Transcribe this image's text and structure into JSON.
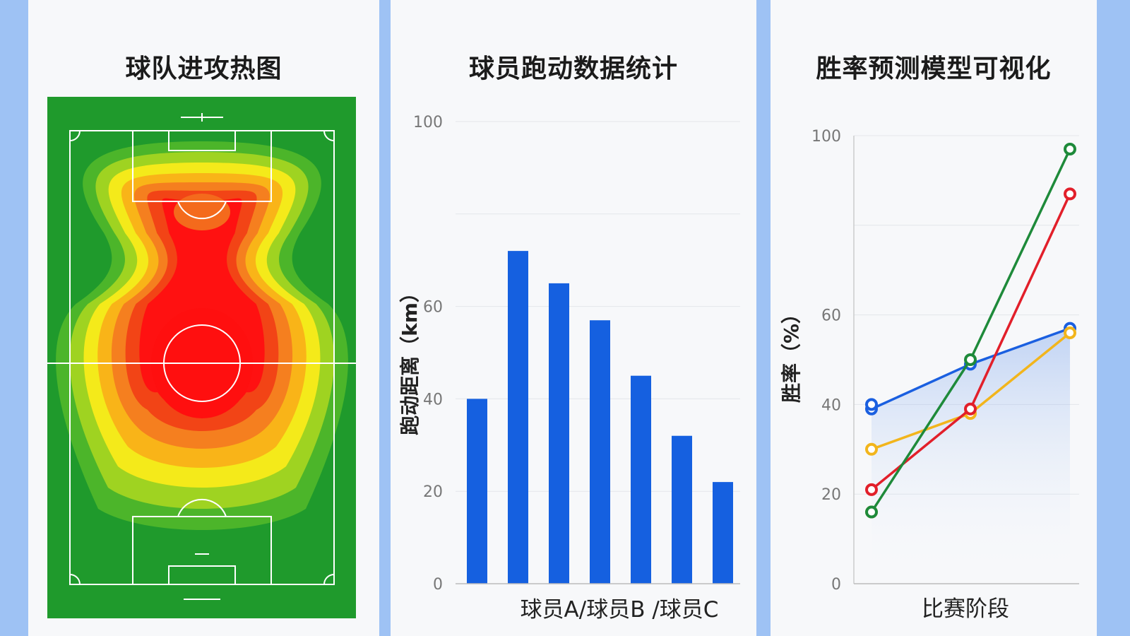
{
  "panels": {
    "heatmap": {
      "title": "球队进攻热图"
    },
    "bar": {
      "title": "球员跑动数据统计"
    },
    "line": {
      "title": "胜率预测模型可视化"
    }
  },
  "chart_data": [
    {
      "type": "heatmap",
      "title": "球队进攻热图",
      "description_levels": [
        "green",
        "yellow-green",
        "yellow",
        "orange",
        "red"
      ],
      "hotspots": [
        {
          "area": "center-circle",
          "intensity": 1.0
        },
        {
          "area": "upper-penalty-arc",
          "intensity": 0.8
        }
      ],
      "colors": [
        "#1f9a2c",
        "#4cb52a",
        "#9fd321",
        "#f4ea1a",
        "#f9b418",
        "#f57f1f",
        "#f24416",
        "#ff1111"
      ]
    },
    {
      "type": "bar",
      "title": "球员跑动数据统计",
      "ylabel": "跑动距离（km）",
      "xlabel": "球员A/球员B  /球员C",
      "ylim": [
        0,
        100
      ],
      "yticks": [
        0,
        20,
        40,
        60,
        100
      ],
      "values": [
        40,
        72,
        65,
        57,
        45,
        32,
        22
      ],
      "color": "#1560e0",
      "grid": true
    },
    {
      "type": "line",
      "title": "胜率预测模型可视化",
      "ylabel": "胜率（%）",
      "xlabel": "比赛阶段",
      "ylim": [
        0,
        100
      ],
      "yticks": [
        0,
        20,
        40,
        60,
        100
      ],
      "x": [
        1,
        2,
        3
      ],
      "series": [
        {
          "color": "#1a5fe0",
          "values": [
            39,
            49,
            57
          ],
          "extra_points": [
            [
              1,
              40
            ]
          ],
          "filled": true
        },
        {
          "color": "#f2b51c",
          "values": [
            30,
            38,
            56
          ],
          "extra_points": [
            [
              1,
              16
            ]
          ]
        },
        {
          "color": "#e21f2a",
          "values": [
            21,
            39,
            87
          ]
        },
        {
          "color": "#1e8a3a",
          "values": [
            16,
            50,
            97
          ]
        }
      ],
      "grid": true
    }
  ]
}
